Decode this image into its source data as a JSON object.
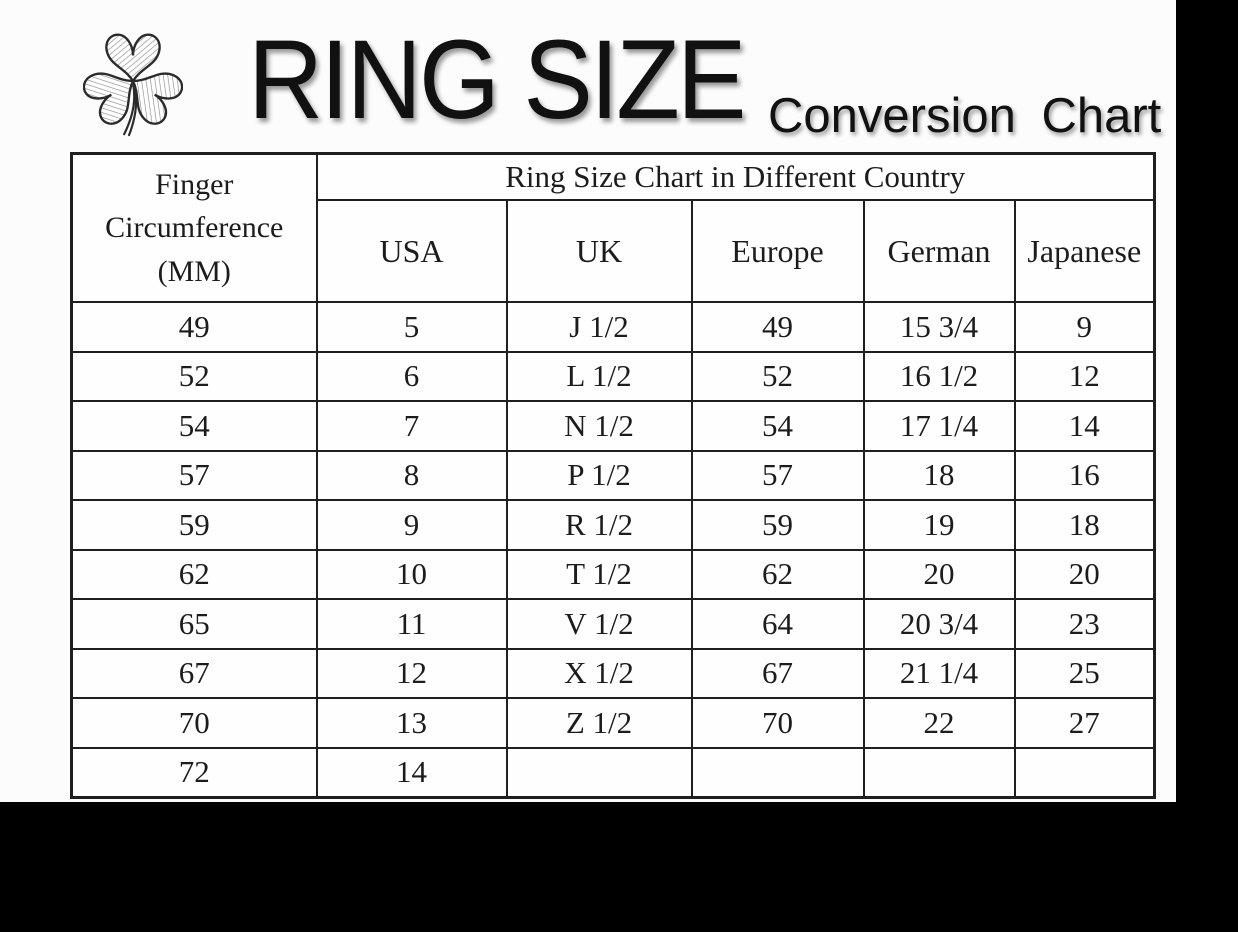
{
  "title": {
    "main": "RING SIZE",
    "sub": "Conversion Chart"
  },
  "logo": {
    "icon": "shamrock-icon"
  },
  "chart_data": {
    "type": "table",
    "title": "RING SIZE Conversion Chart",
    "corner_header": "Finger\nCircumference\n(MM)",
    "group_header": "Ring Size Chart in Different Country",
    "countries": [
      "USA",
      "UK",
      "Europe",
      "German",
      "Japanese"
    ],
    "rows": [
      [
        "49",
        "5",
        "J 1/2",
        "49",
        "15 3/4",
        "9"
      ],
      [
        "52",
        "6",
        "L 1/2",
        "52",
        "16 1/2",
        "12"
      ],
      [
        "54",
        "7",
        "N 1/2",
        "54",
        "17 1/4",
        "14"
      ],
      [
        "57",
        "8",
        "P 1/2",
        "57",
        "18",
        "16"
      ],
      [
        "59",
        "9",
        "R 1/2",
        "59",
        "19",
        "18"
      ],
      [
        "62",
        "10",
        "T 1/2",
        "62",
        "20",
        "20"
      ],
      [
        "65",
        "11",
        "V 1/2",
        "64",
        "20 3/4",
        "23"
      ],
      [
        "67",
        "12",
        "X 1/2",
        "67",
        "21 1/4",
        "25"
      ],
      [
        "70",
        "13",
        "Z 1/2",
        "70",
        "22",
        "27"
      ],
      [
        "72",
        "14",
        "",
        "",
        "",
        ""
      ]
    ]
  }
}
